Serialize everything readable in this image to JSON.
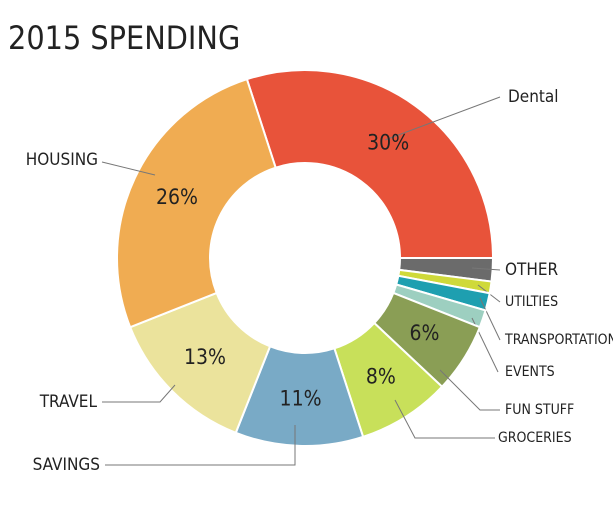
{
  "chart_data": {
    "type": "pie",
    "donut": true,
    "title": "2015 SPENDING",
    "categories": [
      "Dental",
      "OTHER",
      "UTILTIES",
      "TRANSPORTATION",
      "EVENTS",
      "FUN STUFF",
      "GROCERIES",
      "SAVINGS",
      "TRAVEL",
      "HOUSING"
    ],
    "values": [
      30,
      2,
      1,
      1.5,
      1.5,
      6,
      8,
      11,
      13,
      26
    ],
    "value_labels": [
      "30%",
      null,
      null,
      null,
      null,
      "6%",
      "8%",
      "11%",
      "13%",
      "26%"
    ],
    "colors": [
      "#e8533a",
      "#6b6b6b",
      "#cfd93a",
      "#1e9fb0",
      "#9dcfc0",
      "#8a9e55",
      "#c8e05a",
      "#79aac6",
      "#ebe39c",
      "#f0ac52"
    ]
  }
}
